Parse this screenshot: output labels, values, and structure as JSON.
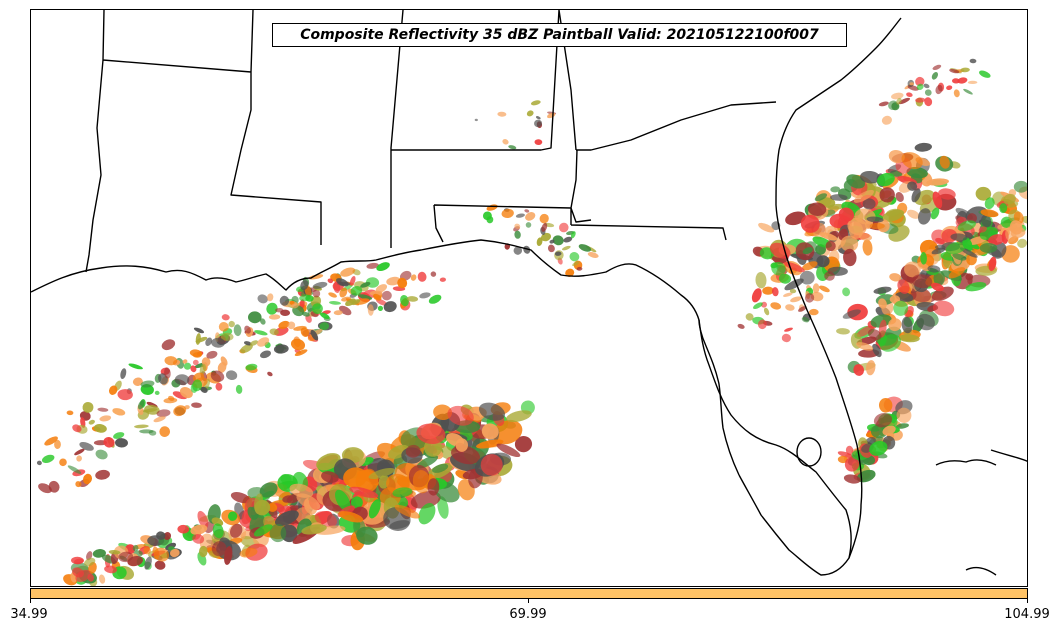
{
  "title": "Composite Reflectivity 35 dBZ Paintball Valid: 202105122100f007",
  "colorbar": {
    "color": "#ffc366",
    "tick_labels": [
      "34.99",
      "69.99",
      "104.99"
    ],
    "min": 34.99,
    "max": 104.99
  },
  "map": {
    "region": "US Gulf Coast and Florida",
    "land_outline_color": "#000000",
    "background_color": "#ffffff"
  },
  "member_colors": [
    {
      "name": "red",
      "color": "#f03c3c"
    },
    {
      "name": "orange",
      "color": "#f57d0a"
    },
    {
      "name": "light-orange",
      "color": "#f7a35c"
    },
    {
      "name": "green",
      "color": "#28c828"
    },
    {
      "name": "dark-green",
      "color": "#3c8c3c"
    },
    {
      "name": "olive",
      "color": "#a8a832"
    },
    {
      "name": "brown-red",
      "color": "#a03232"
    },
    {
      "name": "dark-gray",
      "color": "#505050"
    }
  ]
}
